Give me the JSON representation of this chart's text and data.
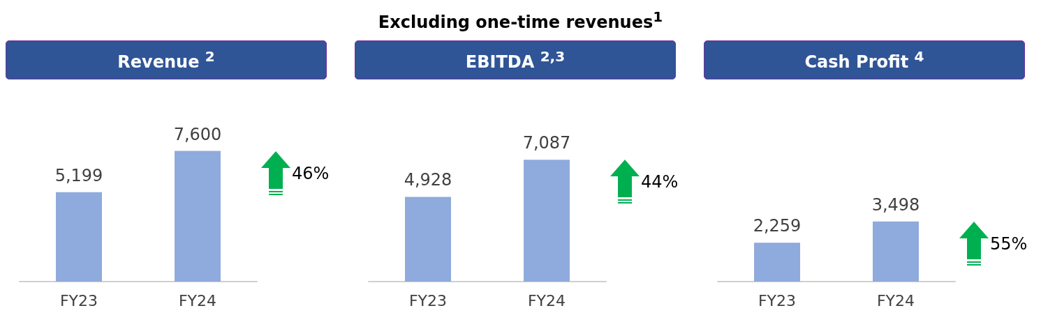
{
  "chart_data": [
    {
      "type": "bar",
      "title": "Revenue $^{2}$",
      "categories": [
        "FY23",
        "FY24"
      ],
      "values": [
        5199,
        7600
      ],
      "value_labels": [
        "5,199",
        "7,600"
      ],
      "color": "#8faadc",
      "annotations": [
        "46%"
      ]
    },
    {
      "type": "bar",
      "subtitle": "Excluding one-time revenues$^{1}$",
      "title": "EBITDA $^{2,3}$",
      "categories": [
        "FY23",
        "FY24"
      ],
      "values": [
        4928,
        7087
      ],
      "value_labels": [
        "4,928",
        "7,087"
      ],
      "color": "#8faadc",
      "annotations": [
        "44%"
      ]
    },
    {
      "type": "bar",
      "title": "Cash Profit $^{4}$",
      "categories": [
        "FY23",
        "FY24"
      ],
      "values": [
        2259,
        3498
      ],
      "value_labels": [
        "2,259",
        "3,498"
      ],
      "color": "#8faadc",
      "annotations": [
        "55%"
      ]
    }
  ]
}
